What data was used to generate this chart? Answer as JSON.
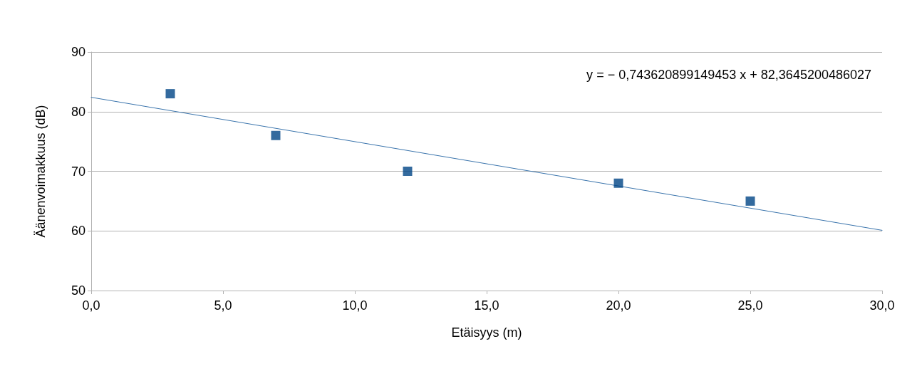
{
  "chart_data": {
    "type": "scatter",
    "xlabel": "Etäisyys (m)",
    "ylabel": "Äänenvoimakkuus (dB)",
    "series": [
      {
        "color": "#004586",
        "marker": "square",
        "x": [
          3,
          7,
          12,
          20,
          25
        ],
        "values": [
          83,
          76,
          70,
          68,
          65
        ]
      },
      {
        "type": "line",
        "color": "#3a74ac",
        "marker": "none",
        "line_style": "solid",
        "x": [
          0,
          30
        ],
        "values": [
          82.4,
          60.1
        ]
      }
    ],
    "xlim": [
      0,
      30
    ],
    "xticks": [
      {
        "value": 0,
        "label": "0,0"
      },
      {
        "value": 5,
        "label": "5,0"
      },
      {
        "value": 10,
        "label": "10,0"
      },
      {
        "value": 15,
        "label": "15,0"
      },
      {
        "value": 20,
        "label": "20,0"
      },
      {
        "value": 25,
        "label": "25,0"
      },
      {
        "value": 30,
        "label": "30,0"
      }
    ],
    "ylim": [
      50,
      90
    ],
    "yticks": [
      50,
      60,
      70,
      80,
      90
    ],
    "grid": "y",
    "annotations": [
      "y = − 0,743620899149453 x + 82,3645200486027"
    ]
  }
}
